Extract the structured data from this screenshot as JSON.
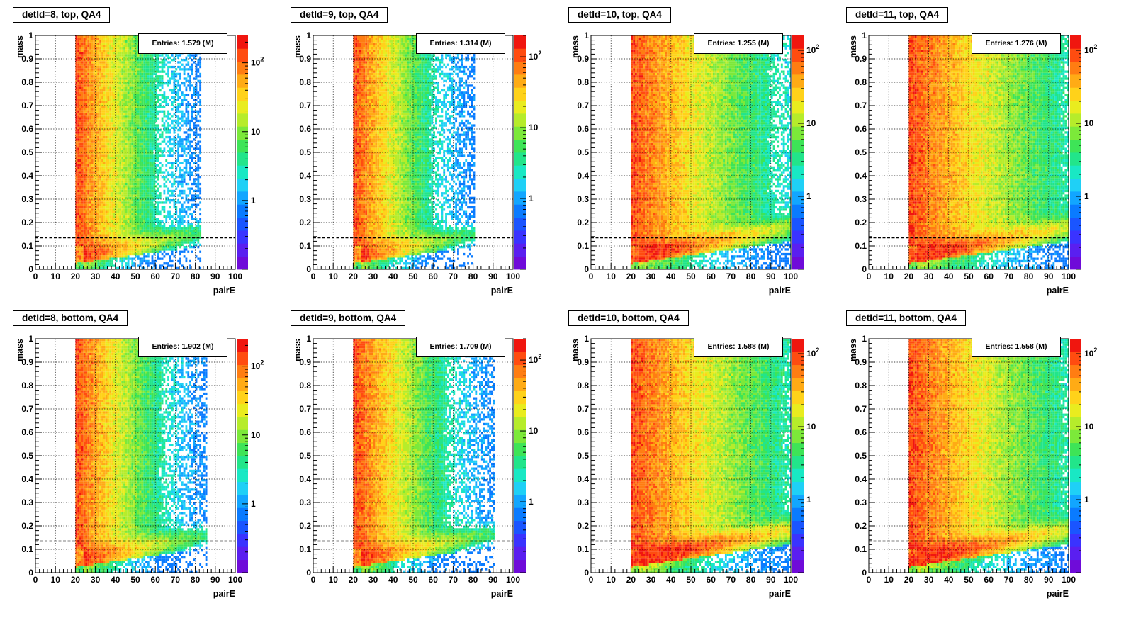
{
  "chart_data": [
    {
      "type": "heatmap",
      "title": "detId=8, top, QA4",
      "stats": {
        "label": "Entries:",
        "value": "1.579 (M)"
      },
      "xlabel": "pairE",
      "ylabel": "mass",
      "xlim": [
        0,
        100
      ],
      "ylim": [
        0,
        1
      ],
      "x_ticks": [
        "0",
        "10",
        "20",
        "30",
        "40",
        "50",
        "60",
        "70",
        "80",
        "90",
        "100"
      ],
      "y_ticks": [
        "0",
        "0.1",
        "0.2",
        "0.3",
        "0.4",
        "0.5",
        "0.6",
        "0.7",
        "0.8",
        "0.9",
        "1"
      ],
      "z_scale": "log",
      "z_ticks": [
        {
          "value": 1,
          "label": "1"
        },
        {
          "value": 10,
          "label": "10"
        },
        {
          "value": 100,
          "label": "10",
          "sup": "2"
        }
      ],
      "z_max": 250,
      "reference_line_y": 0.135,
      "grid": true,
      "density": {
        "x_start": 20,
        "x_extent": 52,
        "low_mass_band": 0.35
      }
    },
    {
      "type": "heatmap",
      "title": "detId=9, top, QA4",
      "stats": {
        "label": "Entries:",
        "value": "1.314 (M)"
      },
      "xlabel": "pairE",
      "ylabel": "mass",
      "xlim": [
        0,
        100
      ],
      "ylim": [
        0,
        1
      ],
      "x_ticks": [
        "0",
        "10",
        "20",
        "30",
        "40",
        "50",
        "60",
        "70",
        "80",
        "90",
        "100"
      ],
      "y_ticks": [
        "0",
        "0.1",
        "0.2",
        "0.3",
        "0.4",
        "0.5",
        "0.6",
        "0.7",
        "0.8",
        "0.9",
        "1"
      ],
      "z_scale": "log",
      "z_ticks": [
        {
          "value": 1,
          "label": "1"
        },
        {
          "value": 10,
          "label": "10"
        },
        {
          "value": 100,
          "label": "10",
          "sup": "2"
        }
      ],
      "z_max": 200,
      "reference_line_y": 0.135,
      "grid": true,
      "density": {
        "x_start": 20,
        "x_extent": 50,
        "low_mass_band": 0.3
      }
    },
    {
      "type": "heatmap",
      "title": "detId=10, top, QA4",
      "stats": {
        "label": "Entries:",
        "value": "1.255 (M)"
      },
      "xlabel": "pairE",
      "ylabel": "mass",
      "xlim": [
        0,
        100
      ],
      "ylim": [
        0,
        1
      ],
      "x_ticks": [
        "0",
        "10",
        "20",
        "30",
        "40",
        "50",
        "60",
        "70",
        "80",
        "90",
        "100"
      ],
      "y_ticks": [
        "0",
        "0.1",
        "0.2",
        "0.3",
        "0.4",
        "0.5",
        "0.6",
        "0.7",
        "0.8",
        "0.9",
        "1"
      ],
      "z_scale": "log",
      "z_ticks": [
        {
          "value": 1,
          "label": "1"
        },
        {
          "value": 10,
          "label": "10"
        },
        {
          "value": 100,
          "label": "10",
          "sup": "2"
        }
      ],
      "z_max": 160,
      "reference_line_y": 0.135,
      "grid": true,
      "density": {
        "x_start": 20,
        "x_extent": 90,
        "low_mass_band": 0.6
      }
    },
    {
      "type": "heatmap",
      "title": "detId=11, top, QA4",
      "stats": {
        "label": "Entries:",
        "value": "1.276 (M)"
      },
      "xlabel": "pairE",
      "ylabel": "mass",
      "xlim": [
        0,
        100
      ],
      "ylim": [
        0,
        1
      ],
      "x_ticks": [
        "0",
        "10",
        "20",
        "30",
        "40",
        "50",
        "60",
        "70",
        "80",
        "90",
        "100"
      ],
      "y_ticks": [
        "0",
        "0.1",
        "0.2",
        "0.3",
        "0.4",
        "0.5",
        "0.6",
        "0.7",
        "0.8",
        "0.9",
        "1"
      ],
      "z_scale": "log",
      "z_ticks": [
        {
          "value": 1,
          "label": "1"
        },
        {
          "value": 10,
          "label": "10"
        },
        {
          "value": 100,
          "label": "10",
          "sup": "2"
        }
      ],
      "z_max": 160,
      "reference_line_y": 0.135,
      "grid": true,
      "density": {
        "x_start": 20,
        "x_extent": 100,
        "low_mass_band": 0.7
      }
    },
    {
      "type": "heatmap",
      "title": "detId=8, bottom, QA4",
      "stats": {
        "label": "Entries:",
        "value": "1.902 (M)"
      },
      "xlabel": "pairE",
      "ylabel": "mass",
      "xlim": [
        0,
        100
      ],
      "ylim": [
        0,
        1
      ],
      "x_ticks": [
        "0",
        "10",
        "20",
        "30",
        "40",
        "50",
        "60",
        "70",
        "80",
        "90",
        "100"
      ],
      "y_ticks": [
        "0",
        "0.1",
        "0.2",
        "0.3",
        "0.4",
        "0.5",
        "0.6",
        "0.7",
        "0.8",
        "0.9",
        "1"
      ],
      "z_scale": "log",
      "z_ticks": [
        {
          "value": 1,
          "label": "1"
        },
        {
          "value": 10,
          "label": "10"
        },
        {
          "value": 100,
          "label": "10",
          "sup": "2"
        }
      ],
      "z_max": 250,
      "reference_line_y": 0.135,
      "grid": true,
      "density": {
        "x_start": 20,
        "x_extent": 55,
        "low_mass_band": 0.35
      }
    },
    {
      "type": "heatmap",
      "title": "detId=9, bottom, QA4",
      "stats": {
        "label": "Entries:",
        "value": "1.709 (M)"
      },
      "xlabel": "pairE",
      "ylabel": "mass",
      "xlim": [
        0,
        100
      ],
      "ylim": [
        0,
        1
      ],
      "x_ticks": [
        "0",
        "10",
        "20",
        "30",
        "40",
        "50",
        "60",
        "70",
        "80",
        "90",
        "100"
      ],
      "y_ticks": [
        "0",
        "0.1",
        "0.2",
        "0.3",
        "0.4",
        "0.5",
        "0.6",
        "0.7",
        "0.8",
        "0.9",
        "1"
      ],
      "z_scale": "log",
      "z_ticks": [
        {
          "value": 1,
          "label": "1"
        },
        {
          "value": 10,
          "label": "10"
        },
        {
          "value": 100,
          "label": "10",
          "sup": "2"
        }
      ],
      "z_max": 200,
      "reference_line_y": 0.135,
      "grid": true,
      "density": {
        "x_start": 20,
        "x_extent": 60,
        "low_mass_band": 0.35
      }
    },
    {
      "type": "heatmap",
      "title": "detId=10, bottom, QA4",
      "stats": {
        "label": "Entries:",
        "value": "1.588 (M)"
      },
      "xlabel": "pairE",
      "ylabel": "mass",
      "xlim": [
        0,
        100
      ],
      "ylim": [
        0,
        1
      ],
      "x_ticks": [
        "0",
        "10",
        "20",
        "30",
        "40",
        "50",
        "60",
        "70",
        "80",
        "90",
        "100"
      ],
      "y_ticks": [
        "0",
        "0.1",
        "0.2",
        "0.3",
        "0.4",
        "0.5",
        "0.6",
        "0.7",
        "0.8",
        "0.9",
        "1"
      ],
      "z_scale": "log",
      "z_ticks": [
        {
          "value": 1,
          "label": "1"
        },
        {
          "value": 10,
          "label": "10"
        },
        {
          "value": 100,
          "label": "10",
          "sup": "2"
        }
      ],
      "z_max": 160,
      "reference_line_y": 0.135,
      "grid": true,
      "density": {
        "x_start": 20,
        "x_extent": 100,
        "low_mass_band": 0.9
      }
    },
    {
      "type": "heatmap",
      "title": "detId=11, bottom, QA4",
      "stats": {
        "label": "Entries:",
        "value": "1.558 (M)"
      },
      "xlabel": "pairE",
      "ylabel": "mass",
      "xlim": [
        0,
        100
      ],
      "ylim": [
        0,
        1
      ],
      "x_ticks": [
        "0",
        "10",
        "20",
        "30",
        "40",
        "50",
        "60",
        "70",
        "80",
        "90",
        "100"
      ],
      "y_ticks": [
        "0",
        "0.1",
        "0.2",
        "0.3",
        "0.4",
        "0.5",
        "0.6",
        "0.7",
        "0.8",
        "0.9",
        "1"
      ],
      "z_scale": "log",
      "z_ticks": [
        {
          "value": 1,
          "label": "1"
        },
        {
          "value": 10,
          "label": "10"
        },
        {
          "value": 100,
          "label": "10",
          "sup": "2"
        }
      ],
      "z_max": 160,
      "reference_line_y": 0.135,
      "grid": true,
      "density": {
        "x_start": 20,
        "x_extent": 100,
        "low_mass_band": 0.75
      }
    }
  ],
  "colors": {
    "palette": [
      "#6f0bd9",
      "#5a1ff0",
      "#3a33ff",
      "#1a55ff",
      "#0a7bff",
      "#12a6ff",
      "#1fd0f6",
      "#19e8c4",
      "#22e58a",
      "#3ee457",
      "#7ce93a",
      "#b6ec2b",
      "#e9ec1f",
      "#ffd21a",
      "#ffab15",
      "#ff7d12",
      "#ff4c10",
      "#f0160f"
    ],
    "reference_line": "#000000",
    "grid": "#000000"
  }
}
